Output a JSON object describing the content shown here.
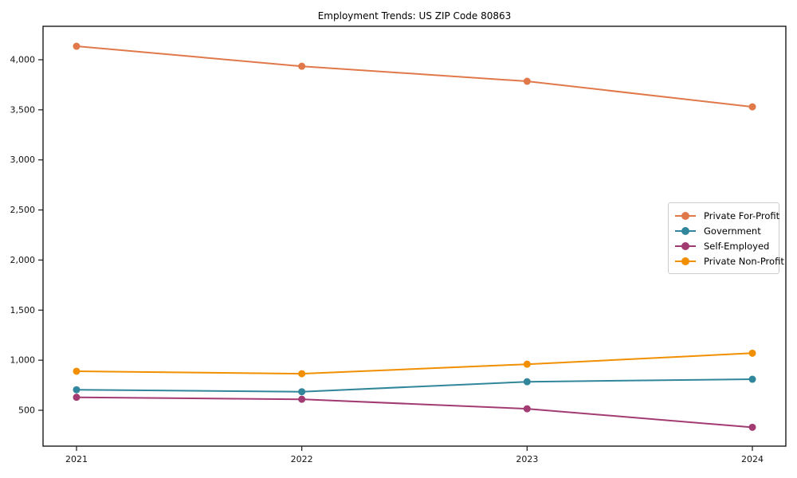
{
  "title": "Employment Trends: US ZIP Code 80863",
  "background_color": "#ffffff",
  "axis_color": "#1a1a1a",
  "chart_data": {
    "type": "line",
    "title": "Employment Trends: US ZIP Code 80863",
    "xlabel": "",
    "ylabel": "",
    "x": [
      2021,
      2022,
      2023,
      2024
    ],
    "x_labels": [
      "2021",
      "2022",
      "2023",
      "2024"
    ],
    "series": [
      {
        "name": "Private For-Profit",
        "color": "#e0784a",
        "values": [
          4135,
          3935,
          3785,
          3530
        ]
      },
      {
        "name": "Government",
        "color": "#31869b",
        "values": [
          705,
          685,
          785,
          810
        ]
      },
      {
        "name": "Self-Employed",
        "color": "#a23b72",
        "values": [
          630,
          610,
          515,
          330
        ]
      },
      {
        "name": "Private Non-Profit",
        "color": "#f18f01",
        "values": [
          890,
          865,
          960,
          1070
        ]
      }
    ],
    "ylim": [
      142,
      4334
    ],
    "yticks": [
      500,
      1000,
      1500,
      2000,
      2500,
      3000,
      3500,
      4000
    ],
    "ytick_labels": [
      "500",
      "1,000",
      "1,500",
      "2,000",
      "2,500",
      "3,000",
      "3,500",
      "4,000"
    ],
    "grid": false,
    "legend_position": "center right",
    "marker": "circle"
  }
}
